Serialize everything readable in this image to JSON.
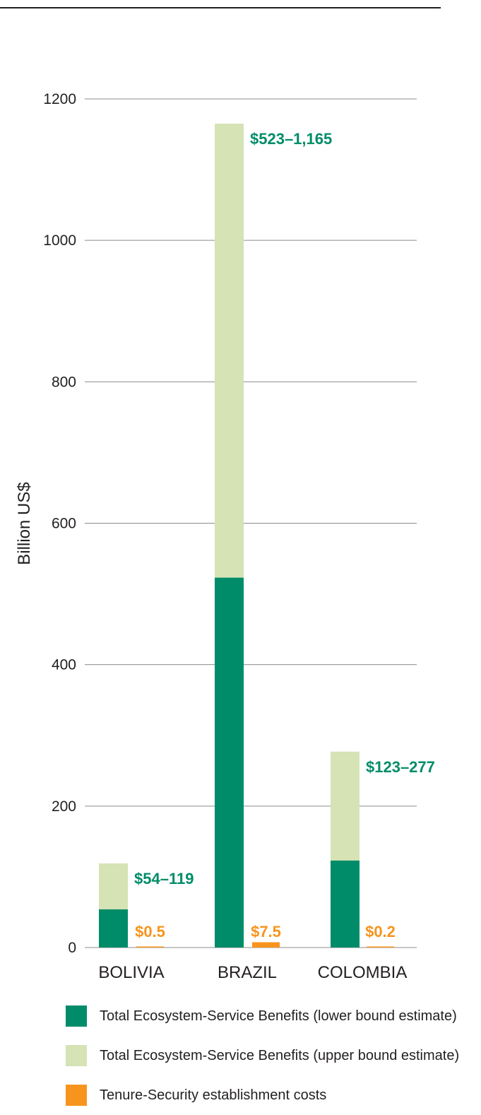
{
  "chart_data": {
    "type": "bar",
    "ylabel": "Billion US$",
    "ylim": [
      0,
      1200
    ],
    "yticks": [
      0,
      200,
      400,
      600,
      800,
      1000,
      1200
    ],
    "grid": true,
    "categories": [
      "BOLIVIA",
      "BRAZIL",
      "COLOMBIA"
    ],
    "series": [
      {
        "name": "Total Ecosystem-Service Benefits (lower bound estimate)",
        "values": [
          54,
          523,
          123
        ],
        "color": "#008c69"
      },
      {
        "name": "Total Ecosystem-Service Benefits (upper bound estimate)",
        "values": [
          119,
          1165,
          277
        ],
        "color": "#d5e3b5"
      },
      {
        "name": "Tenure-Security establishment costs",
        "values": [
          0.5,
          7.5,
          0.2
        ],
        "color": "#f7941d"
      }
    ],
    "annotations": {
      "benefit_ranges": [
        "$54–119",
        "$523–1,165",
        "$123–277"
      ],
      "costs": [
        "$0.5",
        "$7.5",
        "$0.2"
      ]
    },
    "legend_position": "bottom"
  }
}
